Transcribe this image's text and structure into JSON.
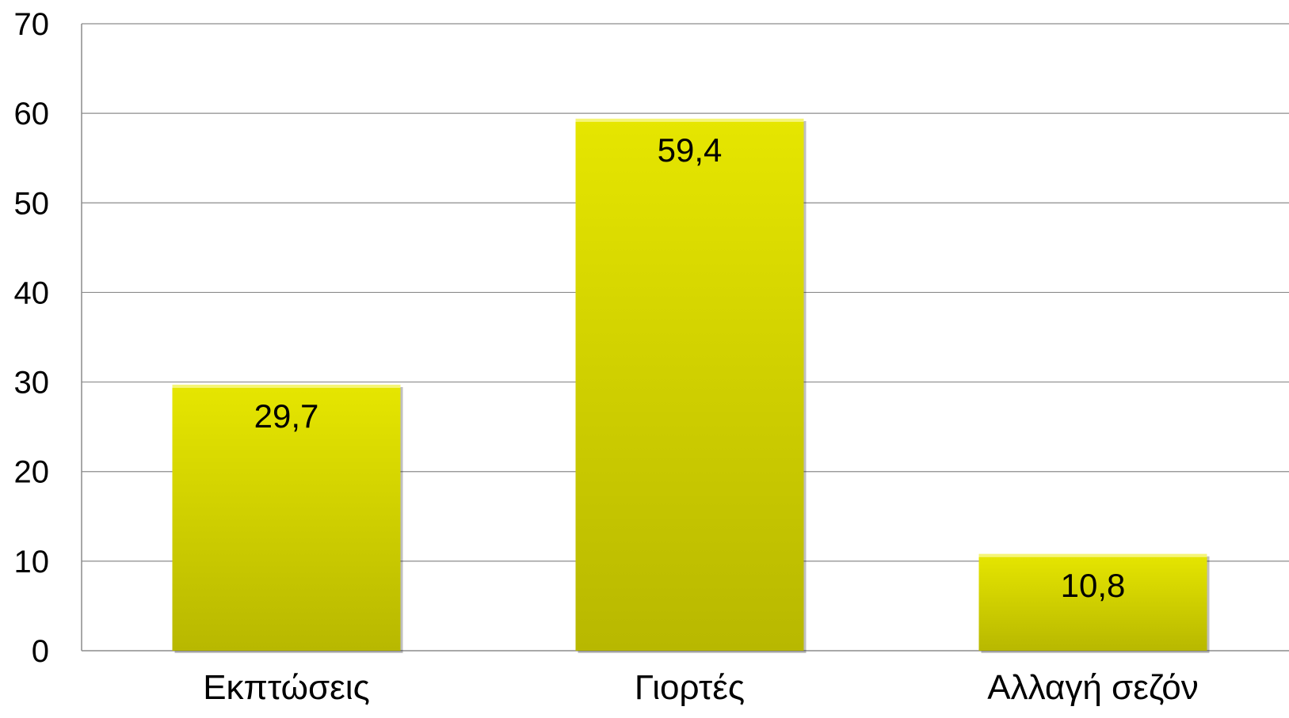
{
  "chart_data": {
    "type": "bar",
    "categories": [
      "Εκπτώσεις",
      "Γιορτές",
      "Αλλαγή σεζόν"
    ],
    "values": [
      29.7,
      59.4,
      10.8
    ],
    "data_labels": [
      "29,7",
      "59,4",
      "10,8"
    ],
    "title": "",
    "xlabel": "",
    "ylabel": "",
    "ylim": [
      0,
      70
    ],
    "yticks": [
      0,
      10,
      20,
      30,
      40,
      50,
      60,
      70
    ],
    "grid": true,
    "legend": "none",
    "bar_color": "#e6e600",
    "bar_color_dark": "#b8b800",
    "data_label_position": "inside-top"
  }
}
